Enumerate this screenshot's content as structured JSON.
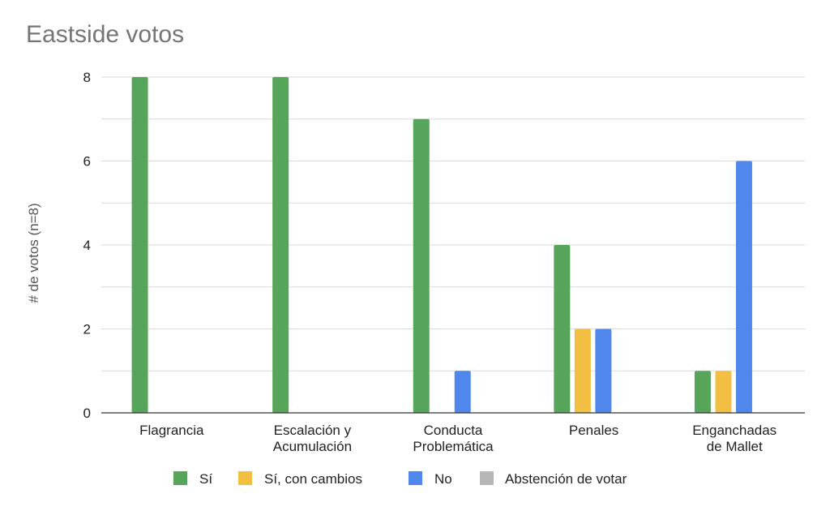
{
  "chart_data": {
    "type": "bar",
    "title": "Eastside votos",
    "xlabel": "",
    "ylabel": "# de votos (n=8)",
    "ylim": [
      0,
      8
    ],
    "yticks": [
      0,
      2,
      4,
      6,
      8
    ],
    "grid": true,
    "legend_position": "bottom",
    "categories": [
      [
        "Flagrancia"
      ],
      [
        "Escalación y",
        "Acumulación"
      ],
      [
        "Conducta",
        "Problemática"
      ],
      [
        "Penales"
      ],
      [
        "Enganchadas",
        "de Mallet"
      ]
    ],
    "series": [
      {
        "name": "Sí",
        "color": "#57a55a",
        "values": [
          8,
          8,
          7,
          4,
          1
        ]
      },
      {
        "name": "Sí, con cambios",
        "color": "#f2bf42",
        "values": [
          0,
          0,
          0,
          2,
          1
        ]
      },
      {
        "name": "No",
        "color": "#5087ec",
        "values": [
          0,
          0,
          1,
          2,
          6
        ]
      },
      {
        "name": "Abstención de votar",
        "color": "#b7b7b7",
        "values": [
          0,
          0,
          0,
          0,
          0
        ]
      }
    ]
  }
}
